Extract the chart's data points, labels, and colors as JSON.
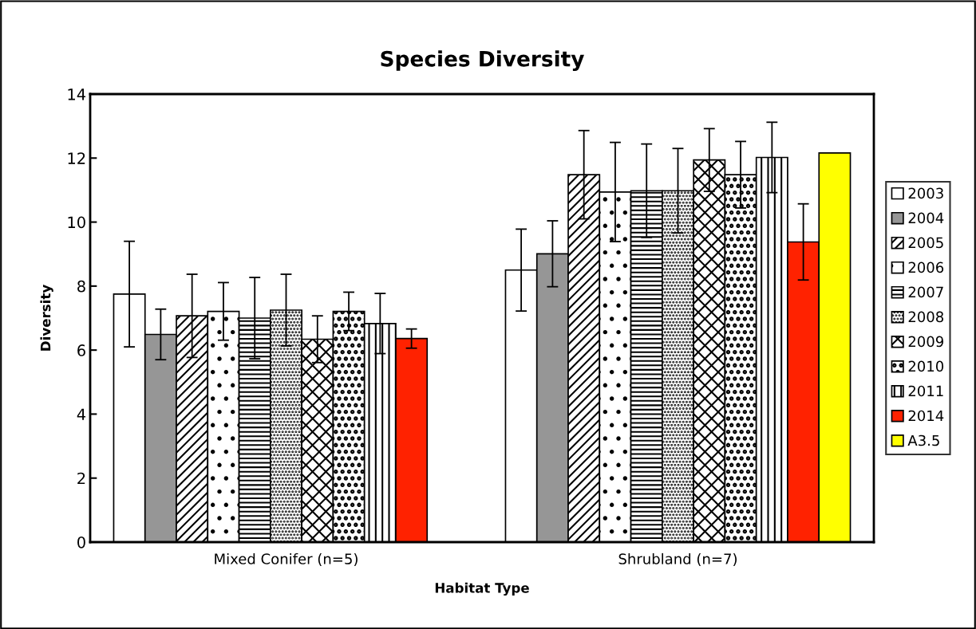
{
  "chart_data": {
    "type": "bar",
    "title": "Species Diversity",
    "xlabel": "Habitat Type",
    "ylabel": "Diversity",
    "categories": [
      "Mixed Conifer (n=5)",
      "Shrubland (n=7)"
    ],
    "ylim": [
      0,
      14
    ],
    "yticks": [
      0,
      2,
      4,
      6,
      8,
      10,
      12,
      14
    ],
    "grid": false,
    "legend": "right",
    "series": [
      {
        "name": "2003",
        "color": "#ffffff",
        "values": [
          7.75,
          8.5
        ],
        "errors": [
          1.65,
          1.28
        ]
      },
      {
        "name": "2004",
        "color": "#969696",
        "values": [
          6.49,
          9.01
        ],
        "errors": [
          0.79,
          1.03
        ]
      },
      {
        "name": "2005",
        "color": "#ffffff",
        "values": [
          7.07,
          11.48
        ],
        "errors": [
          1.3,
          1.38
        ]
      },
      {
        "name": "2006",
        "color": "#ffffff",
        "values": [
          7.21,
          10.94
        ],
        "errors": [
          0.9,
          1.55
        ]
      },
      {
        "name": "2007",
        "color": "#ffffff",
        "values": [
          7.0,
          10.98
        ],
        "errors": [
          1.27,
          1.46
        ]
      },
      {
        "name": "2008",
        "color": "#ffffff",
        "values": [
          7.25,
          10.98
        ],
        "errors": [
          1.12,
          1.32
        ]
      },
      {
        "name": "2009",
        "color": "#ffffff",
        "values": [
          6.34,
          11.94
        ],
        "errors": [
          0.73,
          0.98
        ]
      },
      {
        "name": "2010",
        "color": "#ffffff",
        "values": [
          7.21,
          11.48
        ],
        "errors": [
          0.6,
          1.04
        ]
      },
      {
        "name": "2011",
        "color": "#ffffff",
        "values": [
          6.83,
          12.02
        ],
        "errors": [
          0.94,
          1.1
        ]
      },
      {
        "name": "2014",
        "color": "#ff2200",
        "values": [
          6.36,
          9.38
        ],
        "errors": [
          0.3,
          1.19
        ]
      },
      {
        "name": "A3.5",
        "color": "#ffff00",
        "values": [
          null,
          12.16
        ],
        "errors": [
          null,
          null
        ]
      }
    ]
  }
}
